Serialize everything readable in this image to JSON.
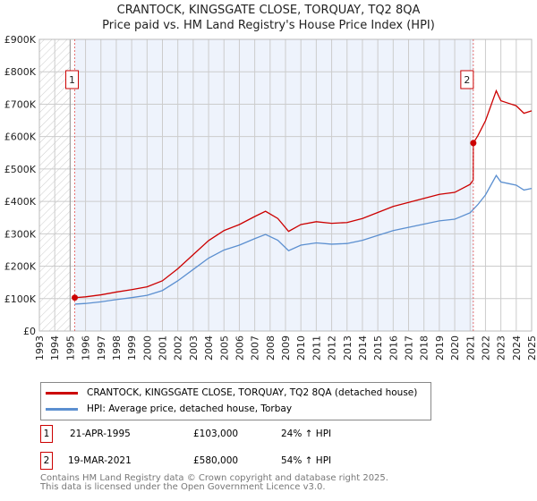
{
  "chart_data": {
    "type": "line",
    "title": "CRANTOCK, KINGSGATE CLOSE, TORQUAY, TQ2 8QA",
    "subtitle": "Price paid vs. HM Land Registry's House Price Index (HPI)",
    "xlim": [
      1993,
      2025
    ],
    "ylim": [
      0,
      900000
    ],
    "y_ticks": [
      0,
      100000,
      200000,
      300000,
      400000,
      500000,
      600000,
      700000,
      800000,
      900000
    ],
    "y_tick_labels": [
      "£0",
      "£100K",
      "£200K",
      "£300K",
      "£400K",
      "£500K",
      "£600K",
      "£700K",
      "£800K",
      "£900K"
    ],
    "x_ticks": [
      "1993",
      "1994",
      "1995",
      "1996",
      "1997",
      "1998",
      "1999",
      "2000",
      "2001",
      "2002",
      "2003",
      "2004",
      "2005",
      "2006",
      "2007",
      "2008",
      "2009",
      "2010",
      "2011",
      "2012",
      "2013",
      "2014",
      "2015",
      "2016",
      "2017",
      "2018",
      "2019",
      "2020",
      "2021",
      "2022",
      "2023",
      "2024",
      "2025"
    ],
    "grid": true,
    "series": [
      {
        "name": "HPI: Average price, detached house, Torbay",
        "color": "#5b8fd0",
        "x": [
          1995.3,
          1996,
          1997,
          1998,
          1999,
          2000,
          2001,
          2002,
          2003,
          2004,
          2005,
          2006,
          2007,
          2007.7,
          2008.5,
          2009.2,
          2010,
          2011,
          2012,
          2013,
          2014,
          2015,
          2016,
          2017,
          2018,
          2019,
          2020,
          2021,
          2021.5,
          2022,
          2022.7,
          2023,
          2023.5,
          2024,
          2024.5,
          2025
        ],
        "y": [
          83000,
          85000,
          90000,
          97000,
          103000,
          110000,
          125000,
          155000,
          190000,
          225000,
          250000,
          265000,
          285000,
          298000,
          280000,
          248000,
          265000,
          272000,
          268000,
          270000,
          280000,
          295000,
          310000,
          320000,
          330000,
          340000,
          345000,
          365000,
          390000,
          420000,
          480000,
          460000,
          455000,
          450000,
          435000,
          440000
        ]
      },
      {
        "name": "CRANTOCK, KINGSGATE CLOSE, TORQUAY, TQ2 8QA (detached house)",
        "color": "#cc0000"
      }
    ],
    "sales": [
      {
        "id": "1",
        "x": 1995.3,
        "price": 103000,
        "date": "21-APR-1995",
        "price_label": "£103,000",
        "hpi_label": "24% ↑ HPI",
        "ratio": 1.24
      },
      {
        "id": "2",
        "x": 2021.21,
        "price": 580000,
        "date": "19-MAR-2021",
        "price_label": "£580,000",
        "hpi_label": "54% ↑ HPI",
        "ratio": 1.54
      }
    ]
  },
  "legend": {
    "red_label": "CRANTOCK, KINGSGATE CLOSE, TORQUAY, TQ2 8QA (detached house)",
    "blue_label": "HPI: Average price, detached house, Torbay"
  },
  "footer": {
    "line1": "Contains HM Land Registry data © Crown copyright and database right 2025.",
    "line2": "This data is licensed under the Open Government Licence v3.0."
  }
}
